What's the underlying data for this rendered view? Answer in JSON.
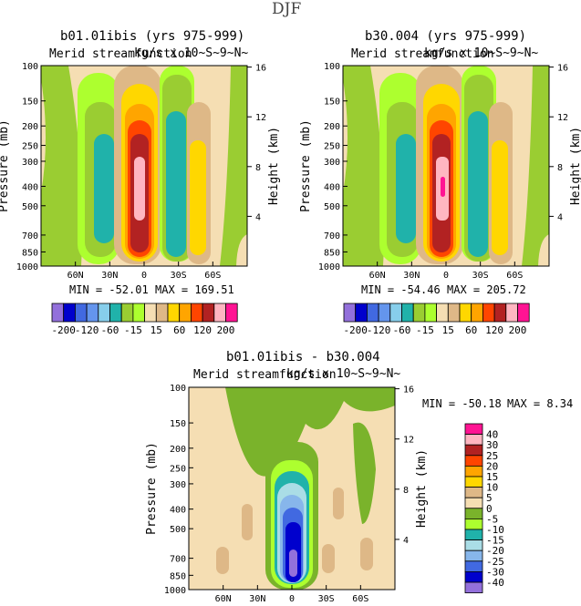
{
  "figure_title": "DJF",
  "panels": [
    {
      "id": "p1",
      "title": "b01.01ibis (yrs 975-999)",
      "overlay_left": "Merid streamfunction",
      "overlay_right": "kg/s x 10~S~9~N~",
      "ylabel_left": "Pressure (mb)",
      "ylabel_right": "Height (km)",
      "pressure_ticks": [
        "100",
        "150",
        "200",
        "250",
        "300",
        "400",
        "500",
        "700",
        "850",
        "1000"
      ],
      "height_ticks": [
        "16",
        "12",
        "8",
        "4"
      ],
      "lat_ticks": [
        "60N",
        "30N",
        "0",
        "30S",
        "60S"
      ],
      "min_label": "MIN = -52.01",
      "max_label": "MAX = 169.51",
      "colorbar_labels": [
        "-200",
        "-120",
        "-60",
        "-15",
        "15",
        "60",
        "120",
        "200"
      ]
    },
    {
      "id": "p2",
      "title": "b30.004 (yrs 975-999)",
      "overlay_left": "Merid streamfunction",
      "overlay_right": "kg/s x 10~S~9~N~",
      "ylabel_left": "Pressure (mb)",
      "ylabel_right": "Height (km)",
      "pressure_ticks": [
        "100",
        "150",
        "200",
        "250",
        "300",
        "400",
        "500",
        "700",
        "850",
        "1000"
      ],
      "height_ticks": [
        "16",
        "12",
        "8",
        "4"
      ],
      "lat_ticks": [
        "60N",
        "30N",
        "0",
        "30S",
        "60S"
      ],
      "min_label": "MIN = -54.46",
      "max_label": "MAX = 205.72",
      "colorbar_labels": [
        "-200",
        "-120",
        "-60",
        "-15",
        "15",
        "60",
        "120",
        "200"
      ]
    },
    {
      "id": "p3",
      "title": "b01.01ibis - b30.004",
      "overlay_left": "Merid streamfunction",
      "overlay_right": "kg/s x 10~S~9~N~",
      "ylabel_left": "Pressure (mb)",
      "ylabel_right": "Height (km)",
      "pressure_ticks": [
        "100",
        "150",
        "200",
        "250",
        "300",
        "400",
        "500",
        "700",
        "850",
        "1000"
      ],
      "height_ticks": [
        "16",
        "12",
        "8",
        "4"
      ],
      "lat_ticks": [
        "60N",
        "30N",
        "0",
        "30S",
        "60S"
      ],
      "min_label": "MIN = -50.18",
      "max_label": "MAX =  8.34",
      "colorbar_labels": [
        "40",
        "30",
        "25",
        "20",
        "15",
        "10",
        "5",
        "0",
        "-5",
        "-10",
        "-15",
        "-20",
        "-25",
        "-30",
        "-40"
      ]
    }
  ],
  "colors": {
    "abs_scale": [
      "#9370db",
      "#0000cd",
      "#4169e1",
      "#6495ed",
      "#87ceeb",
      "#20b2aa",
      "#9acd32",
      "#adff2f",
      "#f5deb3",
      "#deb887",
      "#ffd700",
      "#ffa500",
      "#ff4500",
      "#b22222",
      "#ffb6c1",
      "#ff1493"
    ],
    "diff_scale": [
      "#ff1493",
      "#ffb6c1",
      "#b22222",
      "#ff4500",
      "#ffa500",
      "#ffd700",
      "#deb887",
      "#f5deb3",
      "#7ab32b",
      "#adff2f",
      "#20b2aa",
      "#aadde6",
      "#87b6eb",
      "#4169e1",
      "#0000cd",
      "#9370db"
    ]
  },
  "chart_data": [
    {
      "type": "heatmap",
      "panel": "p1",
      "title": "b01.01ibis (yrs 975-999)",
      "xlabel": "",
      "ylabel": "Pressure (mb)",
      "x_axis": "latitude, north (left) to south (right)",
      "ylim": [
        1000,
        100
      ],
      "y_log": true,
      "min": -52.01,
      "max": 169.51,
      "contour_levels": [
        -200,
        -160,
        -120,
        -80,
        -60,
        -40,
        -15,
        -5,
        5,
        15,
        40,
        60,
        80,
        120,
        160,
        200
      ],
      "features": [
        {
          "sign": "negative",
          "center_lat": 45,
          "center_p": 450,
          "peak": -52.01
        },
        {
          "sign": "positive",
          "center_lat": 8,
          "center_p": 400,
          "peak": 169.51
        },
        {
          "sign": "negative",
          "center_lat": -18,
          "center_p": 450,
          "peak": -40
        },
        {
          "sign": "positive",
          "center_lat": -45,
          "center_p": 450,
          "peak": 40
        }
      ]
    },
    {
      "type": "heatmap",
      "panel": "p2",
      "title": "b30.004 (yrs 975-999)",
      "xlabel": "",
      "ylabel": "Pressure (mb)",
      "x_axis": "latitude, north (left) to south (right)",
      "ylim": [
        1000,
        100
      ],
      "y_log": true,
      "min": -54.46,
      "max": 205.72,
      "contour_levels": [
        -200,
        -160,
        -120,
        -80,
        -60,
        -40,
        -15,
        -5,
        5,
        15,
        40,
        60,
        80,
        120,
        160,
        200
      ],
      "features": [
        {
          "sign": "negative",
          "center_lat": 45,
          "center_p": 450,
          "peak": -54.46
        },
        {
          "sign": "positive",
          "center_lat": 8,
          "center_p": 400,
          "peak": 205.72
        },
        {
          "sign": "negative",
          "center_lat": -18,
          "center_p": 450,
          "peak": -40
        },
        {
          "sign": "positive",
          "center_lat": -45,
          "center_p": 450,
          "peak": 40
        }
      ]
    },
    {
      "type": "heatmap",
      "panel": "p3",
      "title": "b01.01ibis - b30.004",
      "xlabel": "",
      "ylabel": "Pressure (mb)",
      "x_axis": "latitude, north (left) to south (right)",
      "ylim": [
        1000,
        100
      ],
      "y_log": true,
      "min": -50.18,
      "max": 8.34,
      "contour_levels": [
        -40,
        -30,
        -25,
        -20,
        -15,
        -10,
        -5,
        0,
        5,
        10,
        15,
        20,
        25,
        30,
        40
      ],
      "features": [
        {
          "sign": "negative",
          "center_lat": 0,
          "center_p": 400,
          "peak": -50.18
        }
      ]
    }
  ]
}
